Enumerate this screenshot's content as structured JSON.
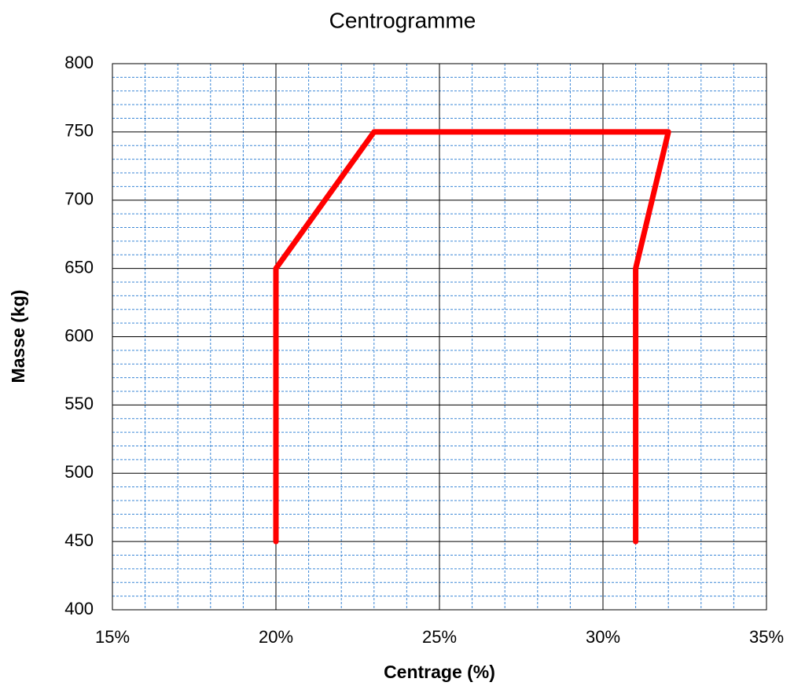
{
  "chart_data": {
    "type": "line",
    "title": "Centrogramme",
    "x_label": "Centrage (%)",
    "y_label": "Masse (kg)",
    "x": [
      20,
      20,
      23,
      32,
      31,
      31
    ],
    "values": [
      450,
      650,
      750,
      750,
      650,
      450
    ],
    "color": "#ff0000",
    "xlim": [
      15,
      35
    ],
    "xticks": [
      {
        "value": 15,
        "label": "15%"
      },
      {
        "value": 20,
        "label": "20%"
      },
      {
        "value": 25,
        "label": "25%"
      },
      {
        "value": 30,
        "label": "30%"
      },
      {
        "value": 35,
        "label": "35%"
      }
    ],
    "ylim": [
      400,
      800
    ],
    "yticks": [
      400,
      450,
      500,
      550,
      600,
      650,
      700,
      750,
      800
    ],
    "xminorticks": [
      16,
      17,
      18,
      19,
      21,
      22,
      23,
      24,
      26,
      27,
      28,
      29,
      31,
      32,
      33,
      34
    ],
    "yminorticks": [
      410,
      420,
      430,
      440,
      460,
      470,
      480,
      490,
      510,
      520,
      530,
      540,
      560,
      570,
      580,
      590,
      610,
      620,
      630,
      640,
      660,
      670,
      680,
      690,
      710,
      720,
      730,
      740,
      760,
      770,
      780,
      790
    ],
    "grid": true
  }
}
